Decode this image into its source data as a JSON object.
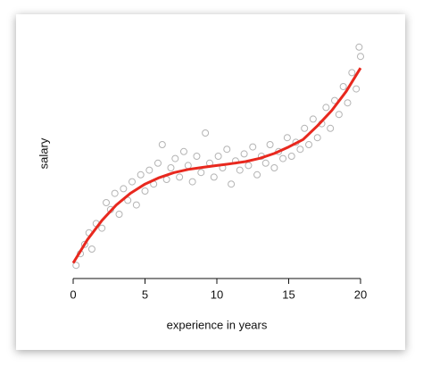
{
  "chart_data": {
    "type": "scatter",
    "xlabel": "experience in years",
    "ylabel": "salary",
    "xlim": [
      0,
      20
    ],
    "xticks": [
      0,
      5,
      10,
      15,
      20
    ],
    "ylim": [
      0,
      100
    ],
    "series": [
      {
        "type": "scatter",
        "color": "#b4b4b4",
        "x": [
          0.2,
          0.5,
          0.8,
          1.1,
          1.3,
          1.6,
          2.0,
          2.3,
          2.6,
          2.9,
          3.2,
          3.5,
          3.8,
          4.1,
          4.4,
          4.7,
          5.0,
          5.3,
          5.6,
          5.9,
          6.2,
          6.5,
          6.8,
          7.1,
          7.4,
          7.7,
          8.0,
          8.3,
          8.6,
          8.9,
          9.2,
          9.5,
          9.8,
          10.1,
          10.4,
          10.7,
          11.0,
          11.3,
          11.6,
          11.9,
          12.2,
          12.5,
          12.8,
          13.1,
          13.4,
          13.7,
          14.0,
          14.3,
          14.6,
          14.9,
          15.2,
          15.5,
          15.8,
          16.1,
          16.4,
          16.7,
          17.0,
          17.3,
          17.6,
          17.9,
          18.2,
          18.5,
          18.8,
          19.1,
          19.4,
          19.7,
          19.9,
          20.0
        ],
        "values": [
          3,
          8,
          12,
          17,
          10,
          21,
          19,
          30,
          27,
          34,
          25,
          36,
          31,
          39,
          29,
          42,
          35,
          44,
          38,
          47,
          55,
          40,
          45,
          49,
          41,
          52,
          46,
          39,
          50,
          43,
          60,
          47,
          41,
          50,
          45,
          53,
          38,
          48,
          44,
          51,
          46,
          54,
          42,
          50,
          47,
          55,
          45,
          52,
          49,
          58,
          50,
          56,
          53,
          62,
          55,
          66,
          58,
          64,
          71,
          62,
          74,
          68,
          80,
          73,
          86,
          79,
          97,
          93
        ]
      },
      {
        "type": "line",
        "color": "#e8281e",
        "x": [
          0,
          1,
          2,
          3,
          4,
          5,
          6,
          7,
          8,
          9,
          10,
          11,
          12,
          13,
          14,
          15,
          16,
          17,
          18,
          19,
          20
        ],
        "values": [
          4,
          14.1,
          22.3,
          29,
          34.1,
          38,
          40.8,
          42.9,
          44.3,
          45.2,
          46,
          46.8,
          47.7,
          49.1,
          51.2,
          54,
          57.2,
          63.1,
          69.7,
          77.9,
          88
        ]
      }
    ]
  }
}
